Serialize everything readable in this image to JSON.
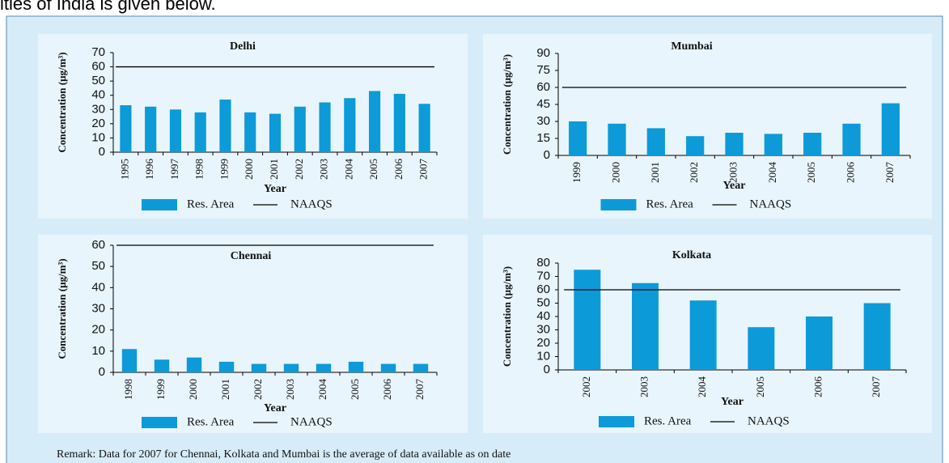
{
  "header_text": "ities of India is given below.",
  "remark": "Remark: Data for 2007 for Chennai, Kolkata and Mumbai is the average of data available as on date",
  "chart_data": [
    {
      "type": "bar",
      "title": "Delhi",
      "ylabel": "Concentration (μg/m³)",
      "xlabel": "Year",
      "categories": [
        "1995",
        "1996",
        "1997",
        "1998",
        "1999",
        "2000",
        "2001",
        "2002",
        "2003",
        "2004",
        "2005",
        "2006",
        "2007"
      ],
      "series": [
        {
          "name": "Res. Area",
          "color": "#0d9ad8",
          "values": [
            33,
            32,
            30,
            28,
            37,
            28,
            27,
            32,
            35,
            38,
            43,
            41,
            34
          ]
        },
        {
          "name": "NAAQS",
          "type": "line",
          "color": "#000000",
          "values": [
            60,
            60,
            60,
            60,
            60,
            60,
            60,
            60,
            60,
            60,
            60,
            60,
            60
          ]
        }
      ],
      "ylim": [
        0,
        70
      ],
      "yticks": [
        0,
        10,
        20,
        30,
        40,
        50,
        60,
        70
      ]
    },
    {
      "type": "bar",
      "title": "Mumbai",
      "ylabel": "Concentration (μg/m³)",
      "xlabel": "Year",
      "categories": [
        "1999",
        "2000",
        "2001",
        "2002",
        "2003",
        "2004",
        "2005",
        "2006",
        "2007"
      ],
      "series": [
        {
          "name": "Res. Area",
          "color": "#0d9ad8",
          "values": [
            30,
            28,
            24,
            17,
            20,
            19,
            20,
            28,
            46
          ]
        },
        {
          "name": "NAAQS",
          "type": "line",
          "color": "#000000",
          "values": [
            60,
            60,
            60,
            60,
            60,
            60,
            60,
            60,
            60
          ]
        }
      ],
      "ylim": [
        0,
        90
      ],
      "yticks": [
        0,
        15,
        30,
        45,
        60,
        75,
        90
      ]
    },
    {
      "type": "bar",
      "title": "Chennai",
      "ylabel": "Concentration (μg/m³)",
      "xlabel": "Year",
      "categories": [
        "1998",
        "1999",
        "2000",
        "2001",
        "2002",
        "2003",
        "2004",
        "2005",
        "2006",
        "2007"
      ],
      "series": [
        {
          "name": "Res. Area",
          "color": "#0d9ad8",
          "values": [
            11,
            6,
            7,
            5,
            4,
            4,
            4,
            5,
            4,
            4
          ]
        },
        {
          "name": "NAAQS",
          "type": "line",
          "color": "#000000",
          "values": [
            60,
            60,
            60,
            60,
            60,
            60,
            60,
            60,
            60,
            60
          ]
        }
      ],
      "ylim": [
        0,
        60
      ],
      "yticks": [
        0,
        10,
        20,
        30,
        40,
        50,
        60
      ]
    },
    {
      "type": "bar",
      "title": "Kolkata",
      "ylabel": "Concentration (μg/m³)",
      "xlabel": "Year",
      "categories": [
        "2002",
        "2003",
        "2004",
        "2005",
        "2006",
        "2007"
      ],
      "series": [
        {
          "name": "Res. Area",
          "color": "#0d9ad8",
          "values": [
            75,
            65,
            52,
            32,
            40,
            50
          ]
        },
        {
          "name": "NAAQS",
          "type": "line",
          "color": "#000000",
          "values": [
            60,
            60,
            60,
            60,
            60,
            60
          ]
        }
      ],
      "ylim": [
        0,
        80
      ],
      "yticks": [
        0,
        10,
        20,
        30,
        40,
        50,
        60,
        70,
        80
      ]
    }
  ]
}
